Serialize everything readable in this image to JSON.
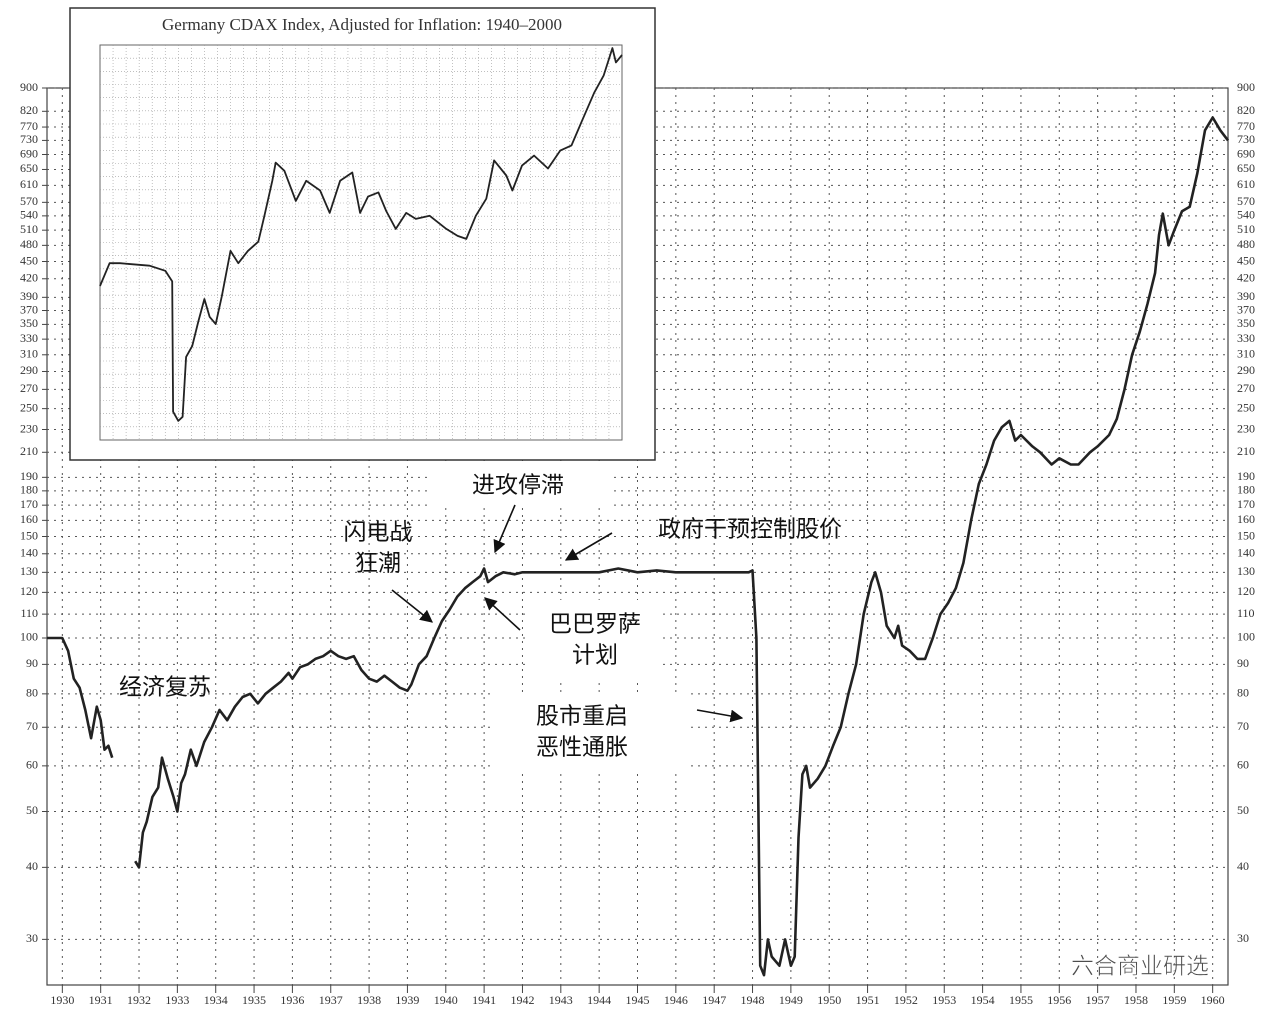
{
  "chart_data": [
    {
      "type": "line",
      "log_y": true,
      "grid": true,
      "color": "#222222",
      "xlim": [
        1929.6,
        1960.4
      ],
      "xticks": [
        1930,
        1931,
        1932,
        1933,
        1934,
        1935,
        1936,
        1937,
        1938,
        1939,
        1940,
        1941,
        1942,
        1943,
        1944,
        1945,
        1946,
        1947,
        1948,
        1949,
        1950,
        1951,
        1952,
        1953,
        1954,
        1955,
        1956,
        1957,
        1958,
        1959,
        1960
      ],
      "ylim": [
        25,
        900
      ],
      "yticks": [
        30,
        40,
        50,
        60,
        70,
        80,
        90,
        100,
        110,
        120,
        130,
        140,
        150,
        160,
        170,
        180,
        190,
        210,
        230,
        250,
        270,
        290,
        310,
        330,
        350,
        370,
        390,
        420,
        450,
        480,
        510,
        540,
        570,
        610,
        650,
        690,
        730,
        770,
        820,
        900
      ],
      "x": [
        1929.6,
        1930.0,
        1930.15,
        1930.3,
        1930.45,
        1930.6,
        1930.75,
        1930.9,
        1931.0,
        1931.1,
        1931.2,
        1931.3,
        1931.6,
        1931.9,
        1932.0,
        1932.1,
        1932.2,
        1932.35,
        1932.5,
        1932.6,
        1932.75,
        1932.9,
        1933.0,
        1933.1,
        1933.2,
        1933.35,
        1933.5,
        1933.7,
        1933.9,
        1934.1,
        1934.3,
        1934.5,
        1934.7,
        1934.9,
        1935.1,
        1935.3,
        1935.5,
        1935.7,
        1935.9,
        1936.0,
        1936.2,
        1936.4,
        1936.6,
        1936.8,
        1937.0,
        1937.2,
        1937.4,
        1937.6,
        1937.8,
        1938.0,
        1938.2,
        1938.4,
        1938.6,
        1938.8,
        1939.0,
        1939.1,
        1939.3,
        1939.5,
        1939.7,
        1939.9,
        1940.1,
        1940.3,
        1940.5,
        1940.7,
        1940.9,
        1941.0,
        1941.1,
        1941.3,
        1941.5,
        1941.8,
        1942.0,
        1943.0,
        1944.0,
        1944.5,
        1945.0,
        1945.5,
        1946.0,
        1947.0,
        1947.9,
        1948.0,
        1948.1,
        1948.2,
        1948.3,
        1948.4,
        1948.5,
        1948.7,
        1948.85,
        1949.0,
        1949.1,
        1949.2,
        1949.3,
        1949.4,
        1949.5,
        1949.7,
        1949.9,
        1950.1,
        1950.3,
        1950.5,
        1950.7,
        1950.9,
        1951.1,
        1951.2,
        1951.35,
        1951.5,
        1951.7,
        1951.8,
        1951.9,
        1952.1,
        1952.3,
        1952.5,
        1952.7,
        1952.9,
        1953.1,
        1953.3,
        1953.5,
        1953.7,
        1953.9,
        1954.1,
        1954.3,
        1954.5,
        1954.7,
        1954.85,
        1955.0,
        1955.3,
        1955.5,
        1955.8,
        1956.0,
        1956.3,
        1956.5,
        1956.8,
        1957.0,
        1957.3,
        1957.5,
        1957.7,
        1957.9,
        1958.1,
        1958.3,
        1958.5,
        1958.6,
        1958.7,
        1958.85,
        1959.0,
        1959.2,
        1959.4,
        1959.6,
        1959.8,
        1960.0,
        1960.2,
        1960.4
      ],
      "values": [
        100,
        100,
        95,
        85,
        82,
        75,
        67,
        76,
        72,
        64,
        65,
        62,
        null,
        41,
        40,
        46,
        48,
        53,
        55,
        62,
        57,
        53,
        50,
        56,
        58,
        64,
        60,
        66,
        70,
        75,
        72,
        76,
        79,
        80,
        77,
        80,
        82,
        84,
        87,
        85,
        89,
        90,
        92,
        93,
        95,
        93,
        92,
        93,
        88,
        85,
        84,
        86,
        84,
        82,
        81,
        83,
        90,
        93,
        100,
        107,
        112,
        118,
        122,
        125,
        128,
        132,
        125,
        128,
        130,
        129,
        130,
        130,
        130,
        132,
        130,
        131,
        130,
        130,
        130,
        131,
        100,
        27,
        26,
        30,
        28,
        27,
        30,
        27,
        28,
        45,
        58,
        60,
        55,
        57,
        60,
        65,
        70,
        80,
        90,
        110,
        125,
        130,
        120,
        105,
        100,
        105,
        97,
        95,
        92,
        92,
        100,
        110,
        115,
        122,
        135,
        160,
        185,
        200,
        220,
        232,
        238,
        220,
        225,
        215,
        210,
        200,
        205,
        200,
        200,
        210,
        215,
        225,
        240,
        270,
        310,
        340,
        380,
        430,
        500,
        545,
        480,
        510,
        550,
        560,
        640,
        760,
        800,
        760,
        730
      ],
      "annotations": [
        [
          "经济复苏"
        ],
        [
          "闪电战",
          "狂潮"
        ],
        [
          "进攻停滞"
        ],
        [
          "政府干预控制股价"
        ],
        [
          "巴巴罗萨",
          "计划"
        ],
        [
          "股市重启",
          "恶性通胀"
        ]
      ],
      "watermark": "六合商业研选"
    },
    {
      "type": "line",
      "log_y": true,
      "color": "#222222",
      "title": "Germany CDAX Index, Adjusted for Inflation: 1940–2000",
      "xlim": [
        1940,
        2000
      ],
      "ylim": [
        15,
        2000
      ],
      "x": [
        1940,
        1941.1,
        1942.3,
        1945.7,
        1947.5,
        1948.3,
        1948.4,
        1949,
        1949.5,
        1949.9,
        1950.6,
        1951.3,
        1952,
        1952.6,
        1953.3,
        1954,
        1955,
        1955.9,
        1957,
        1958.2,
        1958.9,
        1959.8,
        1960.2,
        1961.2,
        1962.5,
        1963.7,
        1965.3,
        1966.4,
        1967.6,
        1969,
        1969.9,
        1970.8,
        1972,
        1972.9,
        1974,
        1975.2,
        1976.3,
        1977.9,
        1979.8,
        1981.1,
        1982.1,
        1983.2,
        1984.4,
        1985.3,
        1986.7,
        1987.4,
        1988.5,
        1989.9,
        1991.5,
        1992.9,
        1994.2,
        1995.4,
        1996.8,
        1997.9,
        1998.9,
        1999.3,
        2000
      ],
      "values": [
        101,
        134,
        134,
        130,
        122,
        107,
        21.3,
        19,
        20,
        42,
        48,
        65,
        86,
        69,
        63,
        89,
        156,
        134,
        156,
        175,
        241,
        372,
        466,
        421,
        290,
        372,
        330,
        250,
        372,
        412,
        250,
        306,
        322,
        256,
        205,
        250,
        232,
        241,
        205,
        188,
        181,
        241,
        298,
        479,
        397,
        330,
        449,
        508,
        433,
        541,
        577,
        782,
        1108,
        1373,
        1925,
        1613,
        1768
      ]
    }
  ]
}
